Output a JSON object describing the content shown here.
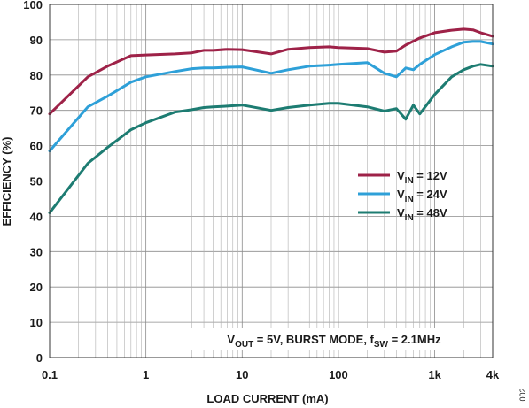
{
  "chart_data": {
    "type": "line",
    "xscale": "log",
    "xlim": [
      0.1,
      4000
    ],
    "ylim": [
      0,
      100
    ],
    "grid": true,
    "xlabel": "LOAD CURRENT (mA)",
    "ylabel": "EFFICIENCY (%)",
    "x_ticks": [
      {
        "value": 0.1,
        "label": "0.1"
      },
      {
        "value": 1,
        "label": "1"
      },
      {
        "value": 10,
        "label": "10"
      },
      {
        "value": 100,
        "label": "100"
      },
      {
        "value": 1000,
        "label": "1k"
      },
      {
        "value": 4000,
        "label": "4k"
      }
    ],
    "y_ticks": [
      0,
      10,
      20,
      30,
      40,
      50,
      60,
      70,
      80,
      90,
      100
    ],
    "legend_position": "right",
    "series": [
      {
        "name_main": "V",
        "name_sub": "IN",
        "name_rest": " = 12V",
        "color": "#9e2248",
        "points": [
          [
            0.1,
            69
          ],
          [
            0.25,
            79.5
          ],
          [
            0.4,
            82.5
          ],
          [
            0.7,
            85.5
          ],
          [
            1,
            85.7
          ],
          [
            2,
            86
          ],
          [
            3,
            86.3
          ],
          [
            4,
            87
          ],
          [
            5,
            87
          ],
          [
            7,
            87.3
          ],
          [
            10,
            87.2
          ],
          [
            20,
            86
          ],
          [
            30,
            87.3
          ],
          [
            50,
            87.8
          ],
          [
            80,
            88
          ],
          [
            100,
            87.8
          ],
          [
            200,
            87.5
          ],
          [
            300,
            86.5
          ],
          [
            400,
            86.8
          ],
          [
            500,
            88.5
          ],
          [
            700,
            90.5
          ],
          [
            1000,
            92
          ],
          [
            1500,
            92.7
          ],
          [
            2000,
            93
          ],
          [
            2500,
            92.8
          ],
          [
            3000,
            92
          ],
          [
            4000,
            91
          ]
        ]
      },
      {
        "name_main": "V",
        "name_sub": "IN",
        "name_rest": " = 24V",
        "color": "#2ea0d8",
        "points": [
          [
            0.1,
            58.5
          ],
          [
            0.25,
            71
          ],
          [
            0.4,
            74
          ],
          [
            0.7,
            78
          ],
          [
            1,
            79.5
          ],
          [
            2,
            81
          ],
          [
            3,
            81.8
          ],
          [
            4,
            82
          ],
          [
            5,
            82
          ],
          [
            7,
            82.2
          ],
          [
            10,
            82.3
          ],
          [
            20,
            80.5
          ],
          [
            30,
            81.5
          ],
          [
            50,
            82.5
          ],
          [
            80,
            82.8
          ],
          [
            100,
            83
          ],
          [
            200,
            83.5
          ],
          [
            300,
            80.5
          ],
          [
            400,
            79.5
          ],
          [
            500,
            82
          ],
          [
            600,
            81.5
          ],
          [
            700,
            83
          ],
          [
            1000,
            85.8
          ],
          [
            1500,
            88
          ],
          [
            2000,
            89.3
          ],
          [
            2500,
            89.5
          ],
          [
            3000,
            89.5
          ],
          [
            4000,
            88.8
          ]
        ]
      },
      {
        "name_main": "V",
        "name_sub": "IN",
        "name_rest": " = 48V",
        "color": "#1d7c72",
        "points": [
          [
            0.1,
            41
          ],
          [
            0.25,
            55
          ],
          [
            0.4,
            59.5
          ],
          [
            0.7,
            64.5
          ],
          [
            1,
            66.5
          ],
          [
            2,
            69.5
          ],
          [
            3,
            70.2
          ],
          [
            4,
            70.8
          ],
          [
            5,
            71
          ],
          [
            7,
            71.2
          ],
          [
            10,
            71.5
          ],
          [
            20,
            70
          ],
          [
            30,
            70.8
          ],
          [
            50,
            71.5
          ],
          [
            80,
            72
          ],
          [
            100,
            72
          ],
          [
            200,
            71
          ],
          [
            300,
            69.8
          ],
          [
            400,
            70.5
          ],
          [
            500,
            67.5
          ],
          [
            600,
            71.5
          ],
          [
            700,
            69
          ],
          [
            1000,
            74.5
          ],
          [
            1500,
            79.5
          ],
          [
            2000,
            81.5
          ],
          [
            2500,
            82.5
          ],
          [
            3000,
            83
          ],
          [
            4000,
            82.5
          ]
        ]
      }
    ],
    "annotation": {
      "parts": [
        {
          "t": "V",
          "sub": false
        },
        {
          "t": "OUT",
          "sub": true
        },
        {
          "t": " = 5V, BURST MODE, f",
          "sub": false
        },
        {
          "t": "SW",
          "sub": true
        },
        {
          "t": " = 2.1MHz",
          "sub": false
        }
      ]
    },
    "figure_id": "002"
  }
}
